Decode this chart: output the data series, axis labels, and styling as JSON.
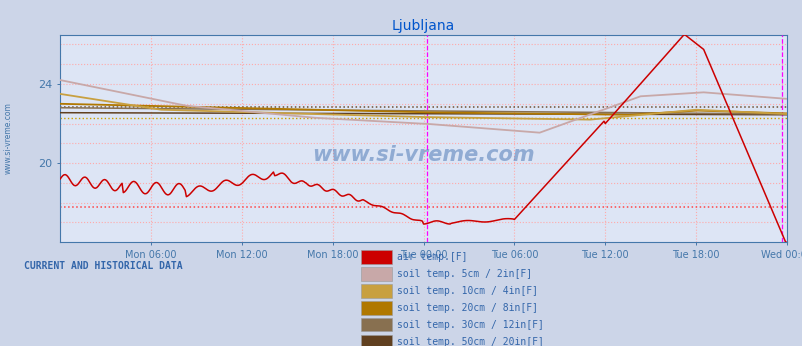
{
  "title": "Ljubljana",
  "title_color": "#0055cc",
  "fig_bg_color": "#ccd5e8",
  "plot_bg_color": "#dde5f5",
  "legend_bg_color": "#e8eef8",
  "tick_color": "#4477aa",
  "grid_color": "#ffaaaa",
  "ylim": [
    16.0,
    26.5
  ],
  "yticks": [
    20,
    24
  ],
  "xlim": [
    0,
    576
  ],
  "xtick_pos": [
    72,
    144,
    216,
    288,
    360,
    432,
    504,
    576
  ],
  "xtick_labels": [
    "Mon 06:00",
    "Mon 12:00",
    "Mon 18:00",
    "Tue 00:00",
    "Tue 06:00",
    "Tue 12:00",
    "Tue 18:00",
    "Wed 00:00"
  ],
  "vline_magenta1": 291,
  "vline_magenta2": 572,
  "hline_red_y": 17.8,
  "hline_dark_y": 22.85,
  "hline_gold_y": 22.3,
  "colors": {
    "air_temp": "#cc0000",
    "soil_5cm": "#c8a8a8",
    "soil_10cm": "#c8a040",
    "soil_20cm": "#b07800",
    "soil_30cm": "#887050",
    "soil_50cm": "#604020"
  },
  "legend_items": [
    {
      "label": "air temp.[F]",
      "color": "#cc0000"
    },
    {
      "label": "soil temp. 5cm / 2in[F]",
      "color": "#c8a8a8"
    },
    {
      "label": "soil temp. 10cm / 4in[F]",
      "color": "#c8a040"
    },
    {
      "label": "soil temp. 20cm / 8in[F]",
      "color": "#b07800"
    },
    {
      "label": "soil temp. 30cm / 12in[F]",
      "color": "#887050"
    },
    {
      "label": "soil temp. 50cm / 20in[F]",
      "color": "#604020"
    }
  ],
  "bottom_label": "CURRENT AND HISTORICAL DATA",
  "watermark": "www.si-vreme.com"
}
